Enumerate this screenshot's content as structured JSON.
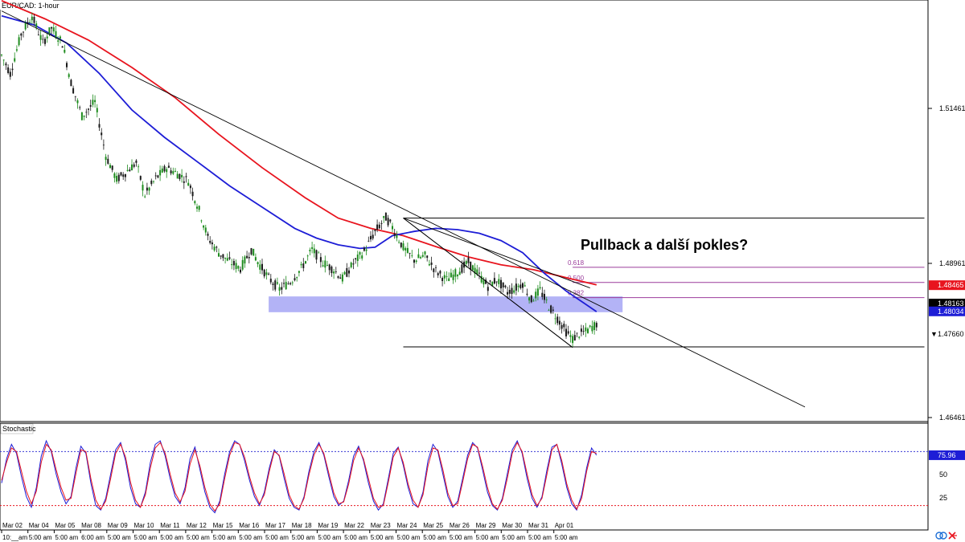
{
  "chart_data": [
    {
      "type": "candlestick",
      "title": "EUR/CAD: 1-hour",
      "annotation": "Pullback a další pokles?",
      "y_ticks": [
        "1.51461",
        "1.48961",
        "1.46461"
      ],
      "ylim": [
        1.4622,
        1.5316
      ],
      "x_ticks": [
        {
          "top": "Mar 02",
          "bottom": "10:__am"
        },
        {
          "top": "Mar 04",
          "bottom": "5:00 am"
        },
        {
          "top": "Mar 05",
          "bottom": "5:00 am"
        },
        {
          "top": "Mar 08",
          "bottom": "6:00 am"
        },
        {
          "top": "Mar 09",
          "bottom": "5:00 am"
        },
        {
          "top": "Mar 10",
          "bottom": "5:00 am"
        },
        {
          "top": "Mar 11",
          "bottom": "5:00 am"
        },
        {
          "top": "Mar 12",
          "bottom": "5:00 am"
        },
        {
          "top": "Mar 15",
          "bottom": "5:00 am"
        },
        {
          "top": "Mar 16",
          "bottom": "5:00 am"
        },
        {
          "top": "Mar 17",
          "bottom": "5:00 am"
        },
        {
          "top": "Mar 18",
          "bottom": "5:00 am"
        },
        {
          "top": "Mar 19",
          "bottom": "5:00 am"
        },
        {
          "top": "Mar 22",
          "bottom": "5:00 am"
        },
        {
          "top": "Mar 23",
          "bottom": "5:00 am"
        },
        {
          "top": "Mar 24",
          "bottom": "5:00 am"
        },
        {
          "top": "Mar 25",
          "bottom": "5:00 am"
        },
        {
          "top": "Mar 26",
          "bottom": "5:00 am"
        },
        {
          "top": "Mar 29",
          "bottom": "5:00 am"
        },
        {
          "top": "Mar 30",
          "bottom": "5:00 am"
        },
        {
          "top": "Mar 31",
          "bottom": "5:00 am"
        },
        {
          "top": "Apr 01",
          "bottom": "5:00 am"
        }
      ],
      "price_tags": [
        {
          "label": "1.48465",
          "value": 1.48465,
          "bg": "#e8141e",
          "fg": "#ffffff"
        },
        {
          "label": "1.48163",
          "value": 1.48163,
          "bg": "#000000",
          "fg": "#ffffff"
        },
        {
          "label": "1.48034",
          "value": 1.48034,
          "bg": "#1d1dd6",
          "fg": "#ffffff"
        },
        {
          "label": "1.47660",
          "value": 1.4766,
          "bg": "#ffffff",
          "fg": "#000000",
          "marker": "▼"
        }
      ],
      "series": [
        {
          "name": "EUR/CAD",
          "kind": "candles",
          "color_up": "#1e8c1e",
          "color_down": "#1a1a1a",
          "path": [
            [
              0,
              1.5225
            ],
            [
              4,
              1.5195
            ],
            [
              9,
              1.526
            ],
            [
              14,
              1.529
            ],
            [
              19,
              1.5245
            ],
            [
              23,
              1.527
            ],
            [
              28,
              1.5245
            ],
            [
              32,
              1.518
            ],
            [
              37,
              1.5125
            ],
            [
              43,
              1.5148
            ],
            [
              48,
              1.506
            ],
            [
              53,
              1.502
            ],
            [
              57,
              1.5032
            ],
            [
              62,
              1.5048
            ],
            [
              66,
              1.4995
            ],
            [
              71,
              1.5022
            ],
            [
              76,
              1.504
            ],
            [
              81,
              1.503
            ],
            [
              86,
              1.5018
            ],
            [
              91,
              1.497
            ],
            [
              95,
              1.4925
            ],
            [
              100,
              1.49
            ],
            [
              105,
              1.4885
            ],
            [
              110,
              1.4874
            ],
            [
              115,
              1.4905
            ],
            [
              118,
              1.4885
            ],
            [
              123,
              1.4858
            ],
            [
              128,
              1.484
            ],
            [
              133,
              1.4852
            ],
            [
              138,
              1.4874
            ],
            [
              143,
              1.4905
            ],
            [
              148,
              1.4884
            ],
            [
              153,
              1.4872
            ],
            [
              157,
              1.4857
            ],
            [
              162,
              1.4882
            ],
            [
              167,
              1.4902
            ],
            [
              172,
              1.4935
            ],
            [
              177,
              1.4958
            ],
            [
              180,
              1.4942
            ],
            [
              185,
              1.4908
            ],
            [
              190,
              1.4888
            ],
            [
              195,
              1.4895
            ],
            [
              200,
              1.487
            ],
            [
              205,
              1.4855
            ],
            [
              210,
              1.4868
            ],
            [
              215,
              1.4884
            ],
            [
              220,
              1.4862
            ],
            [
              224,
              1.4845
            ],
            [
              228,
              1.4856
            ],
            [
              233,
              1.4835
            ],
            [
              236,
              1.484
            ],
            [
              240,
              1.485
            ],
            [
              244,
              1.4822
            ],
            [
              248,
              1.4838
            ],
            [
              252,
              1.4812
            ],
            [
              256,
              1.4792
            ],
            [
              260,
              1.477
            ],
            [
              263,
              1.4758
            ],
            [
              266,
              1.4766
            ],
            [
              269,
              1.477
            ],
            [
              271,
              1.4775
            ],
            [
              274,
              1.4783
            ]
          ]
        },
        {
          "name": "SMA",
          "color": "#e8141e",
          "value_label": "1.48465",
          "path": [
            [
              0,
              1.5315
            ],
            [
              20,
              1.5285
            ],
            [
              40,
              1.525
            ],
            [
              60,
              1.5205
            ],
            [
              80,
              1.5155
            ],
            [
              100,
              1.5095
            ],
            [
              120,
              1.504
            ],
            [
              140,
              1.499
            ],
            [
              155,
              1.4957
            ],
            [
              170,
              1.494
            ],
            [
              185,
              1.4928
            ],
            [
              200,
              1.491
            ],
            [
              215,
              1.4893
            ],
            [
              230,
              1.488
            ],
            [
              245,
              1.4872
            ],
            [
              260,
              1.4859
            ],
            [
              274,
              1.4847
            ]
          ]
        },
        {
          "name": "SMA",
          "color": "#1d1dd6",
          "value_label": "1.48034",
          "path": [
            [
              0,
              1.529
            ],
            [
              15,
              1.5275
            ],
            [
              30,
              1.5245
            ],
            [
              45,
              1.5195
            ],
            [
              60,
              1.5135
            ],
            [
              75,
              1.509
            ],
            [
              90,
              1.505
            ],
            [
              105,
              1.501
            ],
            [
              120,
              1.4975
            ],
            [
              135,
              1.494
            ],
            [
              145,
              1.4924
            ],
            [
              155,
              1.4913
            ],
            [
              165,
              1.4907
            ],
            [
              172,
              1.4909
            ],
            [
              180,
              1.4928
            ],
            [
              190,
              1.4935
            ],
            [
              200,
              1.494
            ],
            [
              210,
              1.4938
            ],
            [
              220,
              1.4932
            ],
            [
              230,
              1.492
            ],
            [
              240,
              1.49
            ],
            [
              250,
              1.4866
            ],
            [
              260,
              1.4837
            ],
            [
              274,
              1.4803
            ]
          ]
        }
      ],
      "drawings": {
        "trendlines": [
          {
            "x1": 0,
            "y1": 1.5298,
            "x2": 370,
            "y2": 1.4646
          },
          {
            "x1": 185,
            "y1": 1.4957,
            "x2": 263,
            "y2": 1.4744
          },
          {
            "x1": 185,
            "y1": 1.4957,
            "x2": 263,
            "y2": 1.4744,
            "style": "range-box-diagonal"
          }
        ],
        "fibonacci": {
          "x_start": 185,
          "x_end": 425,
          "high": 1.4957,
          "low": 1.4745,
          "levels": [
            {
              "label": "0.618",
              "value": 1.4876
            },
            {
              "label": "0.500",
              "value": 1.4851
            },
            {
              "label": "0.382",
              "value": 1.4826
            }
          ]
        },
        "zone": {
          "x1": 123,
          "x2": 286,
          "y_top": 1.4828,
          "y_bottom": 1.4802,
          "color": "#8080f0"
        }
      }
    },
    {
      "type": "line",
      "title": "Stochastic",
      "y_ticks": [
        "75.96",
        "50",
        "25"
      ],
      "ylim": [
        0,
        100
      ],
      "levels": [
        80,
        20
      ],
      "value_label": "75.96",
      "series": [
        {
          "name": "%K",
          "color": "#1d1dd6",
          "values": [
            45,
            72,
            88,
            78,
            52,
            30,
            18,
            40,
            75,
            92,
            80,
            55,
            35,
            22,
            30,
            62,
            86,
            78,
            45,
            20,
            15,
            28,
            55,
            82,
            90,
            70,
            40,
            22,
            18,
            35,
            68,
            88,
            92,
            75,
            50,
            30,
            22,
            40,
            72,
            85,
            60,
            35,
            18,
            12,
            25,
            55,
            80,
            92,
            88,
            70,
            48,
            30,
            20,
            35,
            62,
            82,
            75,
            50,
            28,
            18,
            15,
            30,
            58,
            80,
            90,
            76,
            52,
            30,
            20,
            25,
            48,
            75,
            86,
            70,
            45,
            25,
            15,
            22,
            50,
            78,
            85,
            65,
            40,
            22,
            18,
            35,
            70,
            88,
            80,
            55,
            30,
            18,
            25,
            50,
            76,
            90,
            84,
            60,
            35,
            20,
            15,
            28,
            55,
            82,
            92,
            78,
            50,
            28,
            18,
            30,
            60,
            85,
            88,
            66,
            40,
            22,
            15,
            32,
            62,
            84,
            76
          ]
        },
        {
          "name": "%D",
          "color": "#e8141e",
          "values": [
            48,
            68,
            84,
            80,
            58,
            36,
            22,
            36,
            68,
            88,
            82,
            60,
            40,
            26,
            28,
            56,
            82,
            80,
            50,
            26,
            16,
            25,
            50,
            78,
            88,
            74,
            46,
            26,
            18,
            32,
            62,
            84,
            90,
            78,
            55,
            34,
            24,
            36,
            66,
            82,
            64,
            40,
            22,
            14,
            22,
            50,
            76,
            90,
            88,
            74,
            52,
            34,
            22,
            32,
            58,
            80,
            76,
            55,
            32,
            20,
            16,
            28,
            54,
            76,
            88,
            78,
            56,
            34,
            22,
            24,
            44,
            70,
            84,
            72,
            50,
            28,
            18,
            20,
            46,
            74,
            84,
            68,
            44,
            26,
            18,
            32,
            64,
            84,
            82,
            60,
            34,
            20,
            22,
            46,
            72,
            88,
            85,
            64,
            40,
            22,
            16,
            26,
            50,
            78,
            90,
            80,
            55,
            32,
            20,
            28,
            55,
            82,
            88,
            70,
            44,
            26,
            16,
            28,
            58,
            80,
            78
          ]
        }
      ]
    }
  ],
  "footer_icons": [
    "link-icon",
    "arrows-icon"
  ]
}
